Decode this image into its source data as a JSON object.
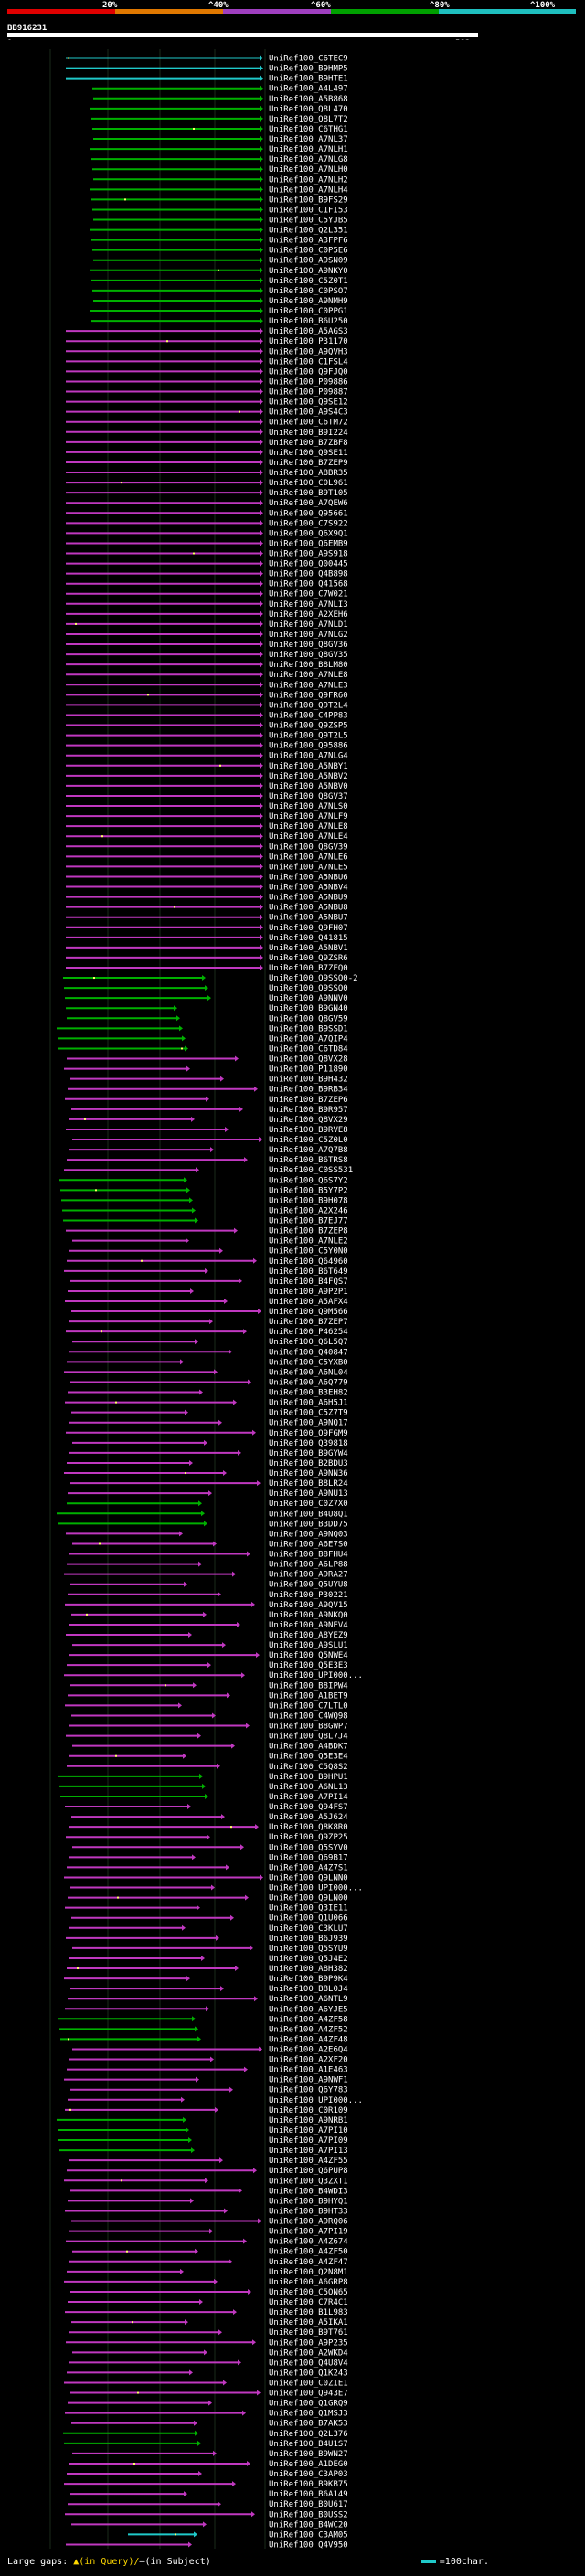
{
  "scale": {
    "labels": [
      "20%",
      "^40%",
      "^60%",
      "^80%",
      "^100%"
    ],
    "colors": [
      "#e00000",
      "#e07800",
      "#9f3fbf",
      "#00a000",
      "#1fbfbf"
    ]
  },
  "query": {
    "id": "BB916231",
    "start": "1",
    "end": "582"
  },
  "footer": {
    "large_gaps_label": "Large gaps: ",
    "large_gaps_query": "▲(in Query)/",
    "large_gaps_subject": "—(in Subject)",
    "legend_label": "=100char."
  },
  "chart_data": {
    "type": "alignment-map",
    "colors": {
      "cyan": "#1fc9c9",
      "green": "#00b000",
      "purple": "#c038c0",
      "gap_marker": "#ffff66"
    },
    "hits": [
      {
        "id": "UniRef100_C6TEC9",
        "c": "cyan"
      },
      {
        "id": "UniRef100_B9HMP5",
        "c": "cyan"
      },
      {
        "id": "UniRef100_B9HTE1",
        "c": "cyan"
      },
      {
        "id": "UniRef100_A4L497",
        "c": "green"
      },
      {
        "id": "UniRef100_A5B868",
        "c": "green"
      },
      {
        "id": "UniRef100_Q8L470",
        "c": "green"
      },
      {
        "id": "UniRef100_Q8L7T2",
        "c": "green"
      },
      {
        "id": "UniRef100_C6THG1",
        "c": "green"
      },
      {
        "id": "UniRef100_A7NL37",
        "c": "green"
      },
      {
        "id": "UniRef100_A7NLH1",
        "c": "green"
      },
      {
        "id": "UniRef100_A7NLG8",
        "c": "green"
      },
      {
        "id": "UniRef100_A7NLH0",
        "c": "green"
      },
      {
        "id": "UniRef100_A7NLH2",
        "c": "green"
      },
      {
        "id": "UniRef100_A7NLH4",
        "c": "green"
      },
      {
        "id": "UniRef100_B9FS29",
        "c": "green"
      },
      {
        "id": "UniRef100_C1FI53",
        "c": "green"
      },
      {
        "id": "UniRef100_C5YJB5",
        "c": "green"
      },
      {
        "id": "UniRef100_Q2L351",
        "c": "green"
      },
      {
        "id": "UniRef100_A3FPF6",
        "c": "green"
      },
      {
        "id": "UniRef100_C0P5E6",
        "c": "green"
      },
      {
        "id": "UniRef100_A9SN09",
        "c": "green"
      },
      {
        "id": "UniRef100_A9NKY0",
        "c": "green"
      },
      {
        "id": "UniRef100_C5Z0T1",
        "c": "green"
      },
      {
        "id": "UniRef100_C0PSO7",
        "c": "green"
      },
      {
        "id": "UniRef100_A9NMH9",
        "c": "green"
      },
      {
        "id": "UniRef100_C0PPG1",
        "c": "green"
      },
      {
        "id": "UniRef100_B6U250",
        "c": "green"
      },
      {
        "id": "UniRef100_A5AGS3",
        "c": "purple"
      },
      {
        "id": "UniRef100_P31170",
        "c": "purple"
      },
      {
        "id": "UniRef100_A9QVH3",
        "c": "purple"
      },
      {
        "id": "UniRef100_C1FSL4",
        "c": "purple"
      },
      {
        "id": "UniRef100_Q9FJQ0",
        "c": "purple"
      },
      {
        "id": "UniRef100_P09886",
        "c": "purple"
      },
      {
        "id": "UniRef100_P09887",
        "c": "purple"
      },
      {
        "id": "UniRef100_Q9SE12",
        "c": "purple"
      },
      {
        "id": "UniRef100_A9S4C3",
        "c": "purple"
      },
      {
        "id": "UniRef100_C6TM72",
        "c": "purple"
      },
      {
        "id": "UniRef100_B9I224",
        "c": "purple"
      },
      {
        "id": "UniRef100_B7ZBF8",
        "c": "purple"
      },
      {
        "id": "UniRef100_Q9SE11",
        "c": "purple"
      },
      {
        "id": "UniRef100_B7ZEP9",
        "c": "purple"
      },
      {
        "id": "UniRef100_A8BR35",
        "c": "purple"
      },
      {
        "id": "UniRef100_C0L961",
        "c": "purple"
      },
      {
        "id": "UniRef100_B9T105",
        "c": "purple"
      },
      {
        "id": "UniRef100_A7QEW6",
        "c": "purple"
      },
      {
        "id": "UniRef100_Q95661",
        "c": "purple"
      },
      {
        "id": "UniRef100_C7S922",
        "c": "purple"
      },
      {
        "id": "UniRef100_Q6X9Q1",
        "c": "purple"
      },
      {
        "id": "UniRef100_Q6EMB9",
        "c": "purple"
      },
      {
        "id": "UniRef100_A9S918",
        "c": "purple"
      },
      {
        "id": "UniRef100_Q00445",
        "c": "purple"
      },
      {
        "id": "UniRef100_Q4B898",
        "c": "purple"
      },
      {
        "id": "UniRef100_Q41568",
        "c": "purple"
      },
      {
        "id": "UniRef100_C7W021",
        "c": "purple"
      },
      {
        "id": "UniRef100_A7NLI3",
        "c": "purple"
      },
      {
        "id": "UniRef100_A2XEH6",
        "c": "purple"
      },
      {
        "id": "UniRef100_A7NLD1",
        "c": "purple"
      },
      {
        "id": "UniRef100_A7NLG2",
        "c": "purple"
      },
      {
        "id": "UniRef100_Q8GV36",
        "c": "purple"
      },
      {
        "id": "UniRef100_Q8GV35",
        "c": "purple"
      },
      {
        "id": "UniRef100_B8LM80",
        "c": "purple"
      },
      {
        "id": "UniRef100_A7NLE8",
        "c": "purple"
      },
      {
        "id": "UniRef100_A7NLE3",
        "c": "purple"
      },
      {
        "id": "UniRef100_Q9FR60",
        "c": "purple"
      },
      {
        "id": "UniRef100_Q9T2L4",
        "c": "purple"
      },
      {
        "id": "UniRef100_C4PP83",
        "c": "purple"
      },
      {
        "id": "UniRef100_Q9ZSP5",
        "c": "purple"
      },
      {
        "id": "UniRef100_Q9T2L5",
        "c": "purple"
      },
      {
        "id": "UniRef100_Q95886",
        "c": "purple"
      },
      {
        "id": "UniRef100_A7NLG4",
        "c": "purple"
      },
      {
        "id": "UniRef100_A5NBY1",
        "c": "purple"
      },
      {
        "id": "UniRef100_A5NBV2",
        "c": "purple"
      },
      {
        "id": "UniRef100_A5NBV0",
        "c": "purple"
      },
      {
        "id": "UniRef100_Q8GV37",
        "c": "purple"
      },
      {
        "id": "UniRef100_A7NLS0",
        "c": "purple"
      },
      {
        "id": "UniRef100_A7NLF9",
        "c": "purple"
      },
      {
        "id": "UniRef100_A7NLE8",
        "c": "purple"
      },
      {
        "id": "UniRef100_A7NLE4",
        "c": "purple"
      },
      {
        "id": "UniRef100_Q8GV39",
        "c": "purple"
      },
      {
        "id": "UniRef100_A7NLE6",
        "c": "purple"
      },
      {
        "id": "UniRef100_A7NLE5",
        "c": "purple"
      },
      {
        "id": "UniRef100_A5NBU6",
        "c": "purple"
      },
      {
        "id": "UniRef100_A5NBV4",
        "c": "purple"
      },
      {
        "id": "UniRef100_A5NBU9",
        "c": "purple"
      },
      {
        "id": "UniRef100_A5NBU8",
        "c": "purple"
      },
      {
        "id": "UniRef100_A5NBU7",
        "c": "purple"
      },
      {
        "id": "UniRef100_Q9FH07",
        "c": "purple"
      },
      {
        "id": "UniRef100_Q41815",
        "c": "purple"
      },
      {
        "id": "UniRef100_A5NBV1",
        "c": "purple"
      },
      {
        "id": "UniRef100_Q9ZSR6",
        "c": "purple"
      },
      {
        "id": "UniRef100_B7ZEQ0",
        "c": "purple"
      },
      {
        "id": "UniRef100_Q9SSQ0-2",
        "c": "green"
      },
      {
        "id": "UniRef100_Q9SSQ0",
        "c": "green"
      },
      {
        "id": "UniRef100_A9NNV0",
        "c": "green"
      },
      {
        "id": "UniRef100_B9GN40",
        "c": "green"
      },
      {
        "id": "UniRef100_Q8GV59",
        "c": "green"
      },
      {
        "id": "UniRef100_B9SSD1",
        "c": "green"
      },
      {
        "id": "UniRef100_A7QIP4",
        "c": "green"
      },
      {
        "id": "UniRef100_C6TD84",
        "c": "green"
      },
      {
        "id": "UniRef100_Q8VX28",
        "c": "purple"
      },
      {
        "id": "UniRef100_P11890",
        "c": "purple"
      },
      {
        "id": "UniRef100_B9H432",
        "c": "purple"
      },
      {
        "id": "UniRef100_B9RB34",
        "c": "purple"
      },
      {
        "id": "UniRef100_B7ZEP6",
        "c": "purple"
      },
      {
        "id": "UniRef100_B9R957",
        "c": "purple"
      },
      {
        "id": "UniRef100_Q8VX29",
        "c": "purple"
      },
      {
        "id": "UniRef100_B9RVE8",
        "c": "purple"
      },
      {
        "id": "UniRef100_C5Z0L0",
        "c": "purple"
      },
      {
        "id": "UniRef100_A7Q7B8",
        "c": "purple"
      },
      {
        "id": "UniRef100_B6TRS8",
        "c": "purple"
      },
      {
        "id": "UniRef100_C0SS531",
        "c": "purple"
      },
      {
        "id": "UniRef100_Q6S7Y2",
        "c": "green"
      },
      {
        "id": "UniRef100_B5Y7P2",
        "c": "green"
      },
      {
        "id": "UniRef100_B9H078",
        "c": "green"
      },
      {
        "id": "UniRef100_A2X246",
        "c": "green"
      },
      {
        "id": "UniRef100_B7EJ77",
        "c": "green"
      },
      {
        "id": "UniRef100_B7ZEP8",
        "c": "purple"
      },
      {
        "id": "UniRef100_A7NLE2",
        "c": "purple"
      },
      {
        "id": "UniRef100_C5Y0N0",
        "c": "purple"
      },
      {
        "id": "UniRef100_Q64960",
        "c": "purple"
      },
      {
        "id": "UniRef100_B6T649",
        "c": "purple"
      },
      {
        "id": "UniRef100_B4FQS7",
        "c": "purple"
      },
      {
        "id": "UniRef100_A9P2P1",
        "c": "purple"
      },
      {
        "id": "UniRef100_A5AFX4",
        "c": "purple"
      },
      {
        "id": "UniRef100_Q9M566",
        "c": "purple"
      },
      {
        "id": "UniRef100_B7ZEP7",
        "c": "purple"
      },
      {
        "id": "UniRef100_P46254",
        "c": "purple"
      },
      {
        "id": "UniRef100_Q6L5Q7",
        "c": "purple"
      },
      {
        "id": "UniRef100_Q40847",
        "c": "purple"
      },
      {
        "id": "UniRef100_C5YXB0",
        "c": "purple"
      },
      {
        "id": "UniRef100_A6NL04",
        "c": "purple"
      },
      {
        "id": "UniRef100_A6Q779",
        "c": "purple"
      },
      {
        "id": "UniRef100_B3EH82",
        "c": "purple"
      },
      {
        "id": "UniRef100_A6H5J1",
        "c": "purple"
      },
      {
        "id": "UniRef100_C5Z7T9",
        "c": "purple"
      },
      {
        "id": "UniRef100_A9NQ17",
        "c": "purple"
      },
      {
        "id": "UniRef100_Q9FGM9",
        "c": "purple"
      },
      {
        "id": "UniRef100_Q39818",
        "c": "purple"
      },
      {
        "id": "UniRef100_B9GYW4",
        "c": "purple"
      },
      {
        "id": "UniRef100_B2BDU3",
        "c": "purple"
      },
      {
        "id": "UniRef100_A9NN36",
        "c": "purple"
      },
      {
        "id": "UniRef100_B8LR24",
        "c": "purple"
      },
      {
        "id": "UniRef100_A9NU13",
        "c": "purple"
      },
      {
        "id": "UniRef100_C0Z7X0",
        "c": "green"
      },
      {
        "id": "UniRef100_B4U8Q1",
        "c": "green"
      },
      {
        "id": "UniRef100_B3DD75",
        "c": "green"
      },
      {
        "id": "UniRef100_A9NQ03",
        "c": "purple"
      },
      {
        "id": "UniRef100_A6E7S0",
        "c": "purple"
      },
      {
        "id": "UniRef100_B8FHU4",
        "c": "purple"
      },
      {
        "id": "UniRef100_A6LP88",
        "c": "purple"
      },
      {
        "id": "UniRef100_A9RA27",
        "c": "purple"
      },
      {
        "id": "UniRef100_Q5UYU8",
        "c": "purple"
      },
      {
        "id": "UniRef100_P30221",
        "c": "purple"
      },
      {
        "id": "UniRef100_A9QV15",
        "c": "purple"
      },
      {
        "id": "UniRef100_A9NKQ0",
        "c": "purple"
      },
      {
        "id": "UniRef100_A9NEV4",
        "c": "purple"
      },
      {
        "id": "UniRef100_A8YEZ9",
        "c": "purple"
      },
      {
        "id": "UniRef100_A9SLU1",
        "c": "purple"
      },
      {
        "id": "UniRef100_Q5NWE4",
        "c": "purple"
      },
      {
        "id": "UniRef100_Q5E3E3",
        "c": "purple"
      },
      {
        "id": "UniRef100_UPI000...",
        "c": "purple"
      },
      {
        "id": "UniRef100_B8IPW4",
        "c": "purple"
      },
      {
        "id": "UniRef100_A1BET9",
        "c": "purple"
      },
      {
        "id": "UniRef100_C7LTL0",
        "c": "purple"
      },
      {
        "id": "UniRef100_C4WQ98",
        "c": "purple"
      },
      {
        "id": "UniRef100_B8GWP7",
        "c": "purple"
      },
      {
        "id": "UniRef100_Q8L7J4",
        "c": "purple"
      },
      {
        "id": "UniRef100_A4BDK7",
        "c": "purple"
      },
      {
        "id": "UniRef100_Q5E3E4",
        "c": "purple"
      },
      {
        "id": "UniRef100_C5Q8S2",
        "c": "purple"
      },
      {
        "id": "UniRef100_B9HPU1",
        "c": "green"
      },
      {
        "id": "UniRef100_A6NL13",
        "c": "green"
      },
      {
        "id": "UniRef100_A7PI14",
        "c": "green"
      },
      {
        "id": "UniRef100_Q94FS7",
        "c": "purple"
      },
      {
        "id": "UniRef100_A5J624",
        "c": "purple"
      },
      {
        "id": "UniRef100_Q8K8R0",
        "c": "purple"
      },
      {
        "id": "UniRef100_Q9ZP25",
        "c": "purple"
      },
      {
        "id": "UniRef100_Q5SYV0",
        "c": "purple"
      },
      {
        "id": "UniRef100_Q69B17",
        "c": "purple"
      },
      {
        "id": "UniRef100_A4Z7S1",
        "c": "purple"
      },
      {
        "id": "UniRef100_Q9LNN0",
        "c": "purple"
      },
      {
        "id": "UniRef100_UPI000...",
        "c": "purple"
      },
      {
        "id": "UniRef100_Q9LN00",
        "c": "purple"
      },
      {
        "id": "UniRef100_Q3IE11",
        "c": "purple"
      },
      {
        "id": "UniRef100_Q1U066",
        "c": "purple"
      },
      {
        "id": "UniRef100_C3KLU7",
        "c": "purple"
      },
      {
        "id": "UniRef100_B6J939",
        "c": "purple"
      },
      {
        "id": "UniRef100_Q5SYU9",
        "c": "purple"
      },
      {
        "id": "UniRef100_Q5J4E2",
        "c": "purple"
      },
      {
        "id": "UniRef100_A8H382",
        "c": "purple"
      },
      {
        "id": "UniRef100_B9P9K4",
        "c": "purple"
      },
      {
        "id": "UniRef100_B8L0J4",
        "c": "purple"
      },
      {
        "id": "UniRef100_A6NTL9",
        "c": "purple"
      },
      {
        "id": "UniRef100_A6YJE5",
        "c": "purple"
      },
      {
        "id": "UniRef100_A4ZF58",
        "c": "green"
      },
      {
        "id": "UniRef100_A4ZF52",
        "c": "green"
      },
      {
        "id": "UniRef100_A4ZF48",
        "c": "green"
      },
      {
        "id": "UniRef100_A2E6Q4",
        "c": "purple"
      },
      {
        "id": "UniRef100_A2XF20",
        "c": "purple"
      },
      {
        "id": "UniRef100_A1E463",
        "c": "purple"
      },
      {
        "id": "UniRef100_A9NWF1",
        "c": "purple"
      },
      {
        "id": "UniRef100_Q6Y783",
        "c": "purple"
      },
      {
        "id": "UniRef100_UPI000...",
        "c": "purple"
      },
      {
        "id": "UniRef100_C0R109",
        "c": "purple"
      },
      {
        "id": "UniRef100_A9NRB1",
        "c": "green"
      },
      {
        "id": "UniRef100_A7PI10",
        "c": "green"
      },
      {
        "id": "UniRef100_A7PI09",
        "c": "green"
      },
      {
        "id": "UniRef100_A7PI13",
        "c": "green"
      },
      {
        "id": "UniRef100_A4ZF55",
        "c": "purple"
      },
      {
        "id": "UniRef100_Q6PUP8",
        "c": "purple"
      },
      {
        "id": "UniRef100_Q3ZXT1",
        "c": "purple"
      },
      {
        "id": "UniRef100_B4WDI3",
        "c": "purple"
      },
      {
        "id": "UniRef100_B9HYQ1",
        "c": "purple"
      },
      {
        "id": "UniRef100_B9HT33",
        "c": "purple"
      },
      {
        "id": "UniRef100_A9RQ06",
        "c": "purple"
      },
      {
        "id": "UniRef100_A7PI19",
        "c": "purple"
      },
      {
        "id": "UniRef100_A4Z674",
        "c": "purple"
      },
      {
        "id": "UniRef100_A4ZF50",
        "c": "purple"
      },
      {
        "id": "UniRef100_A4ZF47",
        "c": "purple"
      },
      {
        "id": "UniRef100_Q2N8M1",
        "c": "purple"
      },
      {
        "id": "UniRef100_A6GRP8",
        "c": "purple"
      },
      {
        "id": "UniRef100_C5QN65",
        "c": "purple"
      },
      {
        "id": "UniRef100_C7R4C1",
        "c": "purple"
      },
      {
        "id": "UniRef100_B1L983",
        "c": "purple"
      },
      {
        "id": "UniRef100_A5IKA1",
        "c": "purple"
      },
      {
        "id": "UniRef100_B9T761",
        "c": "purple"
      },
      {
        "id": "UniRef100_A9P235",
        "c": "purple"
      },
      {
        "id": "UniRef100_A2WKD4",
        "c": "purple"
      },
      {
        "id": "UniRef100_Q4U8V4",
        "c": "purple"
      },
      {
        "id": "UniRef100_Q1K243",
        "c": "purple"
      },
      {
        "id": "UniRef100_C0ZIE1",
        "c": "purple"
      },
      {
        "id": "UniRef100_Q943E7",
        "c": "purple"
      },
      {
        "id": "UniRef100_Q1GRQ9",
        "c": "purple"
      },
      {
        "id": "UniRef100_Q1MSJ3",
        "c": "purple"
      },
      {
        "id": "UniRef100_B7AK53",
        "c": "purple"
      },
      {
        "id": "UniRef100_Q2L376",
        "c": "green"
      },
      {
        "id": "UniRef100_B4U1S7",
        "c": "green"
      },
      {
        "id": "UniRef100_B9WN27",
        "c": "purple"
      },
      {
        "id": "UniRef100_A1DEG0",
        "c": "purple"
      },
      {
        "id": "UniRef100_C3AP03",
        "c": "purple"
      },
      {
        "id": "UniRef100_B9KB75",
        "c": "purple"
      },
      {
        "id": "UniRef100_B6A149",
        "c": "purple"
      },
      {
        "id": "UniRef100_B0U617",
        "c": "purple"
      },
      {
        "id": "UniRef100_B0USS2",
        "c": "purple"
      },
      {
        "id": "UniRef100_B4WC20",
        "c": "purple"
      },
      {
        "id": "UniRef100_C3AM05",
        "c": "cyan"
      },
      {
        "id": "UniRef100_Q4V950",
        "c": "purple"
      }
    ]
  }
}
